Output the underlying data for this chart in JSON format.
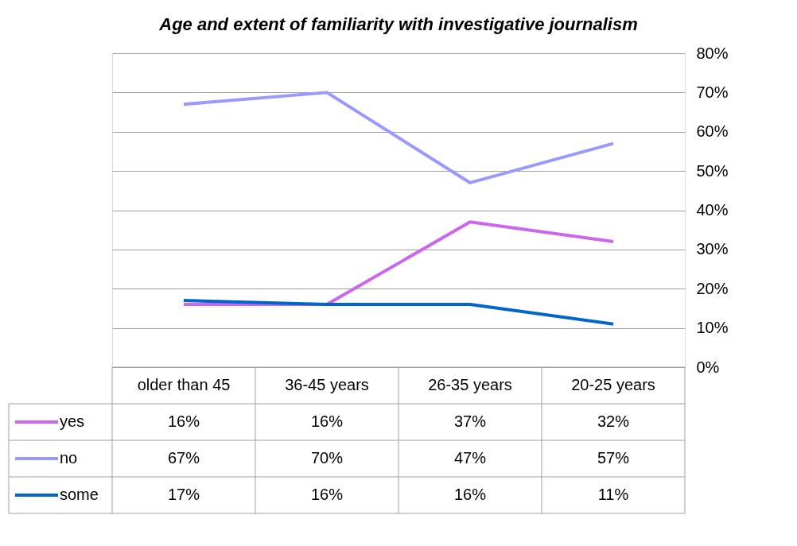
{
  "chart_data": {
    "type": "line",
    "title": "Age and extent of familiarity with investigative journalism",
    "categories": [
      "older than 45",
      "36-45 years",
      "26-35 years",
      "20-25 years"
    ],
    "series": [
      {
        "name": "yes",
        "color": "#cc66ee",
        "values": [
          16,
          16,
          37,
          32
        ],
        "value_labels": [
          "16%",
          "16%",
          "37%",
          "32%"
        ]
      },
      {
        "name": "no",
        "color": "#9999ff",
        "values": [
          67,
          70,
          47,
          57
        ],
        "value_labels": [
          "67%",
          "70%",
          "47%",
          "57%"
        ]
      },
      {
        "name": "some",
        "color": "#0066cc",
        "values": [
          17,
          16,
          16,
          11
        ],
        "value_labels": [
          "17%",
          "16%",
          "16%",
          "11%"
        ]
      }
    ],
    "ylim": [
      0,
      80
    ],
    "yticks": [
      {
        "value": 0,
        "label": "0%"
      },
      {
        "value": 10,
        "label": "10%"
      },
      {
        "value": 20,
        "label": "20%"
      },
      {
        "value": 30,
        "label": "30%"
      },
      {
        "value": 40,
        "label": "40%"
      },
      {
        "value": 50,
        "label": "50%"
      },
      {
        "value": 60,
        "label": "60%"
      },
      {
        "value": 70,
        "label": "70%"
      },
      {
        "value": 80,
        "label": "80%"
      }
    ],
    "grid": "y",
    "legend": "bottom left",
    "marker": "none",
    "line_style": "solid"
  }
}
